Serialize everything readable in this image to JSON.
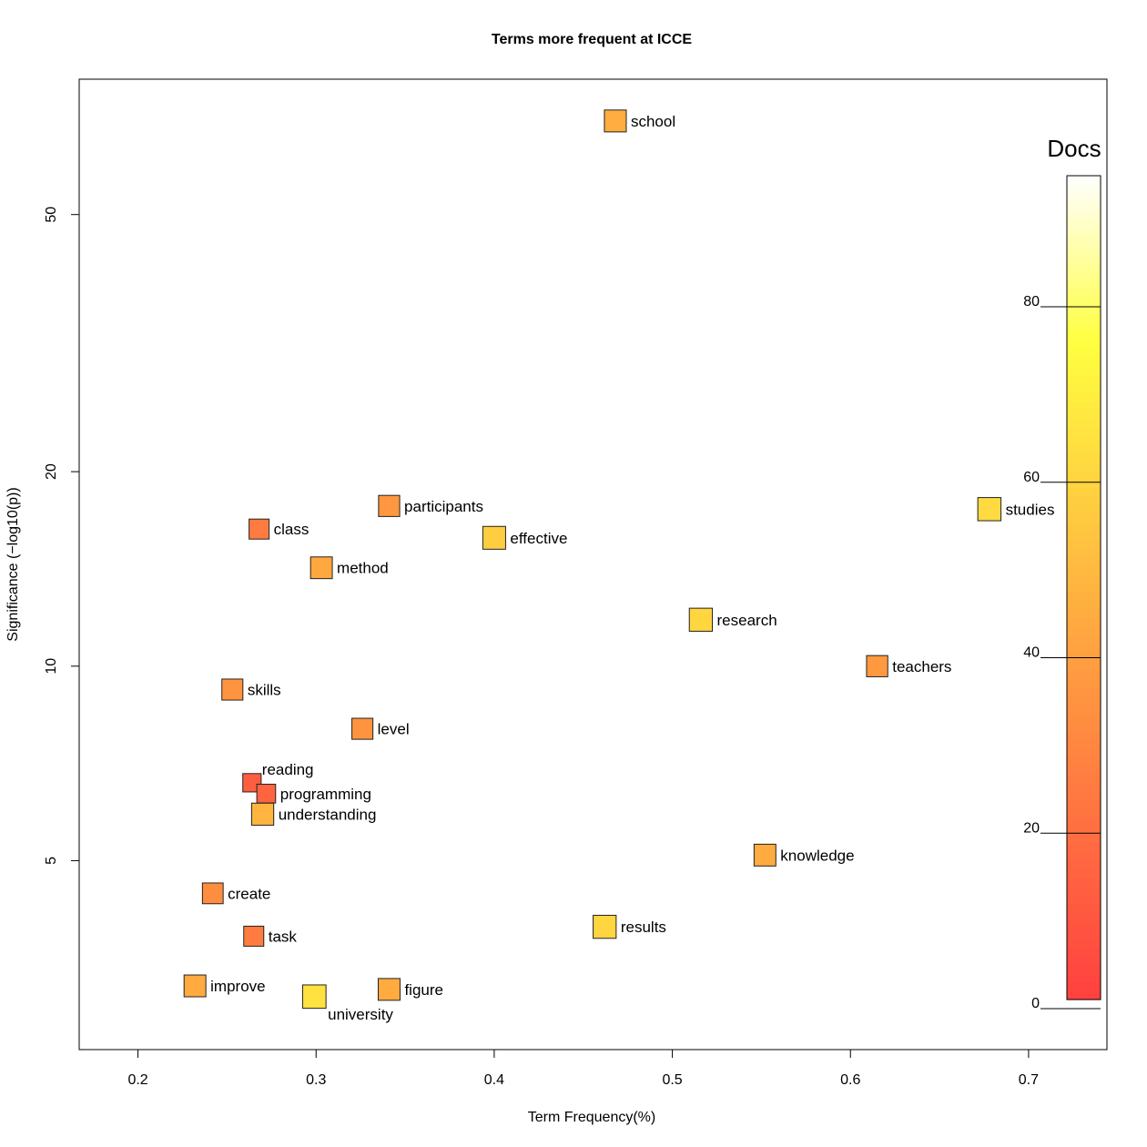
{
  "chart_data": {
    "type": "scatter",
    "title": "Terms more frequent at ICCE",
    "xlabel": "Term Frequency(%)",
    "ylabel": "Significance (−log10(p))",
    "xlim": [
      0.167,
      0.744
    ],
    "ylim": [
      2.55,
      81
    ],
    "yscale": "log",
    "xticks": [
      0.2,
      0.3,
      0.4,
      0.5,
      0.6,
      0.7
    ],
    "xtick_labels": [
      "0.2",
      "0.3",
      "0.4",
      "0.5",
      "0.6",
      "0.7"
    ],
    "yticks": [
      5,
      10,
      20,
      50
    ],
    "ytick_labels": [
      "5",
      "10",
      "20",
      "50"
    ],
    "points": [
      {
        "term": "school",
        "x": 0.468,
        "y": 69.8,
        "docs": 45,
        "label_pos": "right"
      },
      {
        "term": "participants",
        "x": 0.341,
        "y": 17.7,
        "docs": 36,
        "label_pos": "right"
      },
      {
        "term": "class",
        "x": 0.268,
        "y": 16.3,
        "docs": 25,
        "label_pos": "right"
      },
      {
        "term": "effective",
        "x": 0.4,
        "y": 15.8,
        "docs": 57,
        "label_pos": "right"
      },
      {
        "term": "studies",
        "x": 0.678,
        "y": 17.5,
        "docs": 62,
        "label_pos": "right"
      },
      {
        "term": "method",
        "x": 0.303,
        "y": 14.2,
        "docs": 43,
        "label_pos": "right"
      },
      {
        "term": "research",
        "x": 0.516,
        "y": 11.8,
        "docs": 60,
        "label_pos": "right"
      },
      {
        "term": "teachers",
        "x": 0.615,
        "y": 10.0,
        "docs": 37,
        "label_pos": "right"
      },
      {
        "term": "skills",
        "x": 0.253,
        "y": 9.2,
        "docs": 35,
        "label_pos": "right"
      },
      {
        "term": "level",
        "x": 0.326,
        "y": 8.0,
        "docs": 35,
        "label_pos": "right"
      },
      {
        "term": "reading",
        "x": 0.264,
        "y": 6.6,
        "docs": 12,
        "label_pos": "top-right"
      },
      {
        "term": "programming",
        "x": 0.272,
        "y": 6.35,
        "docs": 15,
        "label_pos": "right"
      },
      {
        "term": "understanding",
        "x": 0.27,
        "y": 5.9,
        "docs": 48,
        "label_pos": "right"
      },
      {
        "term": "knowledge",
        "x": 0.552,
        "y": 5.1,
        "docs": 44,
        "label_pos": "right"
      },
      {
        "term": "create",
        "x": 0.242,
        "y": 4.45,
        "docs": 32,
        "label_pos": "right"
      },
      {
        "term": "results",
        "x": 0.462,
        "y": 3.95,
        "docs": 60,
        "label_pos": "right"
      },
      {
        "term": "task",
        "x": 0.265,
        "y": 3.82,
        "docs": 25,
        "label_pos": "right"
      },
      {
        "term": "improve",
        "x": 0.232,
        "y": 3.2,
        "docs": 44,
        "label_pos": "right"
      },
      {
        "term": "figure",
        "x": 0.341,
        "y": 3.16,
        "docs": 44,
        "label_pos": "right"
      },
      {
        "term": "university",
        "x": 0.299,
        "y": 3.08,
        "docs": 65,
        "label_pos": "bottom-right"
      }
    ],
    "legend": {
      "title": "Docs",
      "min": 0,
      "max": 95,
      "ticks": [
        0,
        20,
        40,
        60,
        80
      ],
      "tick_labels": [
        "0",
        "20",
        "40",
        "60",
        "80"
      ],
      "placement": "right"
    },
    "colors": {
      "low": "#ff4040",
      "mid": "#ffa040",
      "high": "#ffff40",
      "top": "#ffffff"
    }
  }
}
